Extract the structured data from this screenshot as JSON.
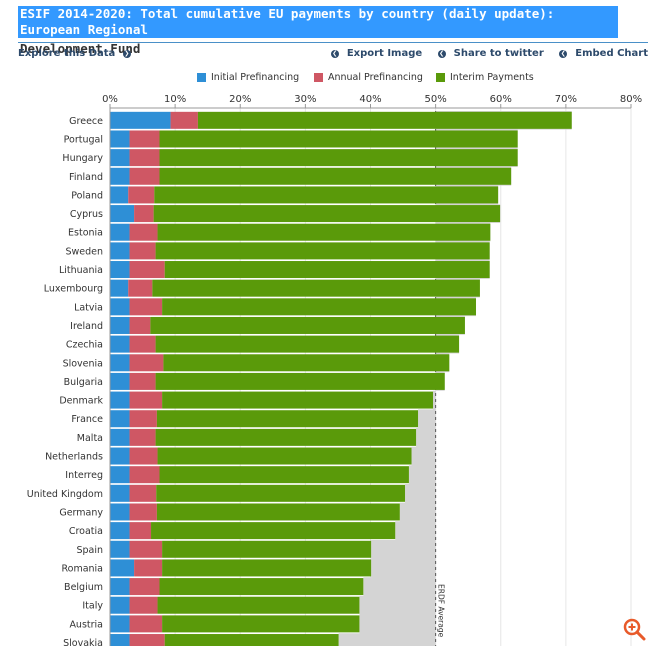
{
  "header": {
    "title_line1": "ESIF 2014-2020: Total cumulative EU payments by country (daily update): European Regional",
    "title_line2": "Development Fund",
    "explore_label": "Explore this Data",
    "export_label": "Export Image",
    "share_label": "Share to twitter",
    "embed_label": "Embed Chart"
  },
  "colors": {
    "initial": "#2e8fd6",
    "annual": "#cf5764",
    "interim": "#5a9a0a",
    "average_area": "#d4d4d4",
    "accent": "#2d4a6b"
  },
  "icons": {
    "zoom": "zoom-in-icon"
  },
  "chart_data": {
    "type": "bar",
    "orientation": "horizontal",
    "stacked": true,
    "categories": [
      "Greece",
      "Portugal",
      "Hungary",
      "Finland",
      "Poland",
      "Cyprus",
      "Estonia",
      "Sweden",
      "Lithuania",
      "Luxembourg",
      "Latvia",
      "Ireland",
      "Czechia",
      "Slovenia",
      "Bulgaria",
      "Denmark",
      "France",
      "Malta",
      "Netherlands",
      "Interreg",
      "United Kingdom",
      "Germany",
      "Croatia",
      "Spain",
      "Romania",
      "Belgium",
      "Italy",
      "Austria",
      "Slovakia"
    ],
    "series": [
      {
        "name": "Initial Prefinancing",
        "values": [
          9.3,
          3.0,
          3.0,
          3.0,
          2.8,
          3.7,
          3.0,
          3.0,
          3.0,
          2.8,
          3.0,
          3.0,
          3.0,
          3.0,
          3.0,
          3.0,
          3.0,
          3.0,
          3.0,
          3.0,
          3.0,
          3.0,
          3.0,
          3.0,
          3.7,
          3.0,
          3.0,
          3.0,
          3.0
        ]
      },
      {
        "name": "Annual Prefinancing",
        "values": [
          4.2,
          4.6,
          4.6,
          4.6,
          4.0,
          3.0,
          4.3,
          4.0,
          5.4,
          3.7,
          5.0,
          3.2,
          4.0,
          5.2,
          4.0,
          5.0,
          4.2,
          4.0,
          4.3,
          4.6,
          4.1,
          4.2,
          3.3,
          5.0,
          4.3,
          4.6,
          4.3,
          5.0,
          5.4
        ]
      },
      {
        "name": "Interim Payments",
        "values": [
          57.4,
          55.0,
          55.0,
          54.0,
          52.8,
          53.2,
          51.1,
          51.3,
          49.9,
          50.3,
          48.2,
          48.3,
          46.6,
          43.9,
          44.4,
          41.6,
          40.1,
          40.0,
          39.0,
          38.3,
          38.2,
          37.3,
          37.5,
          32.1,
          32.1,
          31.3,
          31.0,
          30.3,
          26.7
        ]
      }
    ],
    "average": {
      "value": 50.0,
      "label": "ERDF Average"
    },
    "xlim": [
      0,
      80
    ],
    "ticks": [
      "0%",
      "10%",
      "20%",
      "30%",
      "40%",
      "50%",
      "60%",
      "70%",
      "80%"
    ],
    "legend_position": "top"
  }
}
